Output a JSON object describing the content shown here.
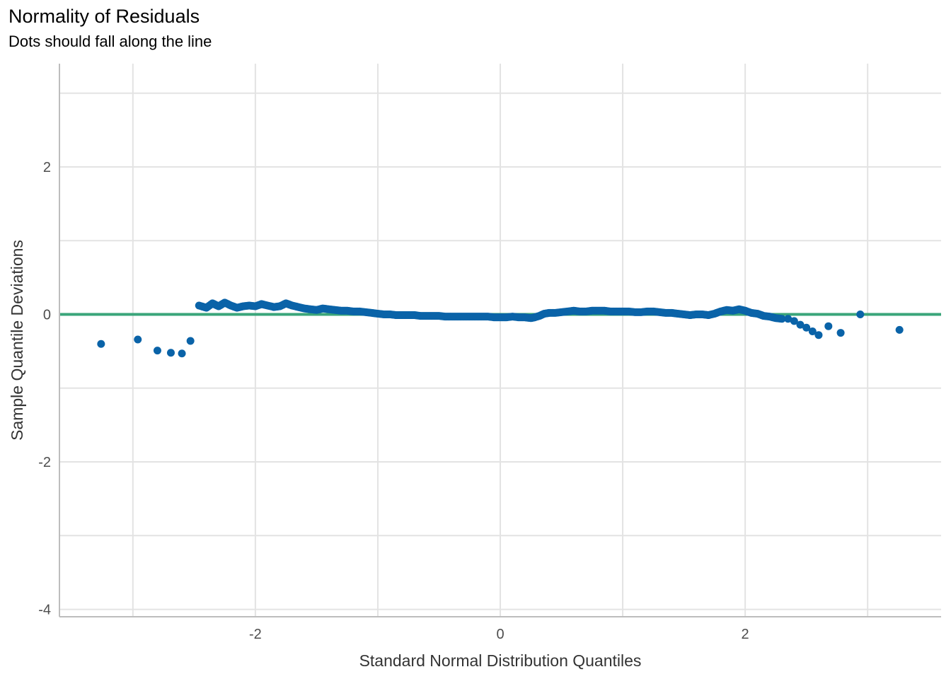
{
  "chart_data": {
    "type": "scatter",
    "title": "Normality of Residuals",
    "subtitle": "Dots should fall along the line",
    "xlabel": "Standard Normal Distribution Quantiles",
    "ylabel": "Sample Quantile Deviations",
    "xlim": [
      -3.6,
      3.6
    ],
    "ylim": [
      -4.1,
      3.4
    ],
    "x_ticks": [
      -2,
      0,
      2
    ],
    "x_tick_labels": [
      "-2",
      "0",
      "2"
    ],
    "y_ticks": [
      -4,
      -2,
      0,
      2
    ],
    "y_tick_labels": [
      "-4",
      "-2",
      "0",
      "2"
    ],
    "x_minor_gridlines": [
      -3,
      -1,
      1,
      3
    ],
    "y_minor_gridlines": [
      -3,
      -1,
      1,
      3
    ],
    "grid": true,
    "reference_line": {
      "y": 0,
      "color": "#3aa57a"
    },
    "point_color": "#0a63a8",
    "curve": [
      [
        -2.46,
        0.12
      ],
      [
        -2.4,
        0.09
      ],
      [
        -2.35,
        0.15
      ],
      [
        -2.3,
        0.11
      ],
      [
        -2.25,
        0.16
      ],
      [
        -2.2,
        0.12
      ],
      [
        -2.15,
        0.09
      ],
      [
        -2.1,
        0.11
      ],
      [
        -2.05,
        0.12
      ],
      [
        -2.0,
        0.11
      ],
      [
        -1.95,
        0.14
      ],
      [
        -1.9,
        0.12
      ],
      [
        -1.85,
        0.1
      ],
      [
        -1.8,
        0.11
      ],
      [
        -1.75,
        0.15
      ],
      [
        -1.7,
        0.12
      ],
      [
        -1.65,
        0.1
      ],
      [
        -1.6,
        0.08
      ],
      [
        -1.55,
        0.07
      ],
      [
        -1.5,
        0.06
      ],
      [
        -1.45,
        0.08
      ],
      [
        -1.4,
        0.07
      ],
      [
        -1.35,
        0.06
      ],
      [
        -1.3,
        0.05
      ],
      [
        -1.25,
        0.05
      ],
      [
        -1.2,
        0.04
      ],
      [
        -1.15,
        0.04
      ],
      [
        -1.1,
        0.03
      ],
      [
        -1.05,
        0.02
      ],
      [
        -1.0,
        0.01
      ],
      [
        -0.95,
        0.0
      ],
      [
        -0.9,
        0.0
      ],
      [
        -0.85,
        -0.01
      ],
      [
        -0.8,
        -0.01
      ],
      [
        -0.75,
        -0.01
      ],
      [
        -0.7,
        -0.01
      ],
      [
        -0.65,
        -0.02
      ],
      [
        -0.6,
        -0.02
      ],
      [
        -0.55,
        -0.02
      ],
      [
        -0.5,
        -0.02
      ],
      [
        -0.45,
        -0.03
      ],
      [
        -0.4,
        -0.03
      ],
      [
        -0.35,
        -0.03
      ],
      [
        -0.3,
        -0.03
      ],
      [
        -0.25,
        -0.03
      ],
      [
        -0.2,
        -0.03
      ],
      [
        -0.15,
        -0.03
      ],
      [
        -0.1,
        -0.03
      ],
      [
        -0.05,
        -0.04
      ],
      [
        0.0,
        -0.04
      ],
      [
        0.05,
        -0.04
      ],
      [
        0.1,
        -0.03
      ],
      [
        0.15,
        -0.04
      ],
      [
        0.2,
        -0.04
      ],
      [
        0.25,
        -0.05
      ],
      [
        0.28,
        -0.04
      ],
      [
        0.32,
        -0.02
      ],
      [
        0.36,
        0.01
      ],
      [
        0.4,
        0.02
      ],
      [
        0.45,
        0.02
      ],
      [
        0.5,
        0.03
      ],
      [
        0.55,
        0.04
      ],
      [
        0.6,
        0.05
      ],
      [
        0.65,
        0.04
      ],
      [
        0.7,
        0.04
      ],
      [
        0.75,
        0.05
      ],
      [
        0.8,
        0.05
      ],
      [
        0.85,
        0.05
      ],
      [
        0.9,
        0.04
      ],
      [
        0.95,
        0.04
      ],
      [
        1.0,
        0.04
      ],
      [
        1.05,
        0.04
      ],
      [
        1.1,
        0.03
      ],
      [
        1.15,
        0.03
      ],
      [
        1.2,
        0.04
      ],
      [
        1.25,
        0.04
      ],
      [
        1.3,
        0.03
      ],
      [
        1.35,
        0.02
      ],
      [
        1.4,
        0.02
      ],
      [
        1.45,
        0.01
      ],
      [
        1.5,
        0.0
      ],
      [
        1.55,
        -0.01
      ],
      [
        1.6,
        0.0
      ],
      [
        1.65,
        0.0
      ],
      [
        1.7,
        -0.01
      ],
      [
        1.75,
        0.01
      ],
      [
        1.8,
        0.04
      ],
      [
        1.85,
        0.06
      ],
      [
        1.9,
        0.05
      ],
      [
        1.95,
        0.07
      ],
      [
        2.0,
        0.05
      ],
      [
        2.05,
        0.02
      ],
      [
        2.1,
        0.01
      ],
      [
        2.15,
        -0.02
      ],
      [
        2.2,
        -0.03
      ],
      [
        2.25,
        -0.05
      ],
      [
        2.3,
        -0.06
      ]
    ],
    "points": [
      [
        -3.26,
        -0.4
      ],
      [
        -2.96,
        -0.34
      ],
      [
        -2.8,
        -0.49
      ],
      [
        -2.69,
        -0.52
      ],
      [
        -2.6,
        -0.53
      ],
      [
        -2.53,
        -0.36
      ],
      [
        2.35,
        -0.06
      ],
      [
        2.4,
        -0.09
      ],
      [
        2.45,
        -0.14
      ],
      [
        2.5,
        -0.18
      ],
      [
        2.55,
        -0.23
      ],
      [
        2.6,
        -0.28
      ],
      [
        2.68,
        -0.16
      ],
      [
        2.78,
        -0.25
      ],
      [
        2.94,
        0.0
      ],
      [
        3.26,
        -0.21
      ]
    ]
  }
}
